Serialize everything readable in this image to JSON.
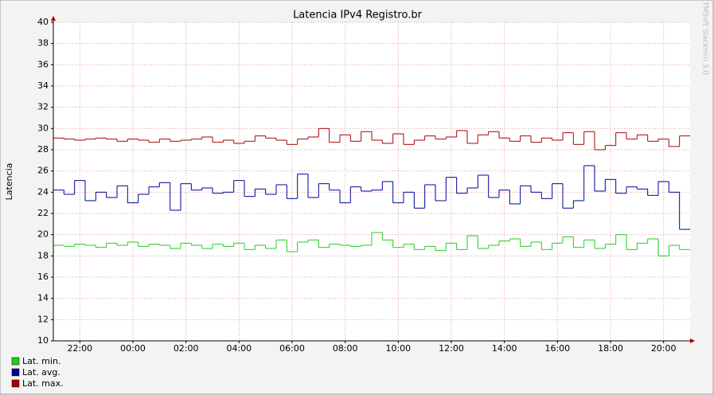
{
  "chart_data": {
    "type": "step-line",
    "title": "Latencia IPv4 Registro.br",
    "y_label": "Latencia",
    "watermark": "TMSoft Slackmin 3.0",
    "x": [
      0,
      0.4,
      0.8,
      1.2,
      1.6,
      2,
      2.4,
      2.8,
      3.2,
      3.6,
      4,
      4.4,
      4.8,
      5.2,
      5.6,
      6,
      6.4,
      6.8,
      7.2,
      7.6,
      8,
      8.4,
      8.8,
      9.2,
      9.6,
      10,
      10.4,
      10.8,
      11.2,
      11.6,
      12,
      12.4,
      12.8,
      13.2,
      13.6,
      14,
      14.4,
      14.8,
      15.2,
      15.6,
      16,
      16.4,
      16.8,
      17.2,
      17.6,
      18,
      18.4,
      18.8,
      19.2,
      19.6,
      20,
      20.4,
      20.8,
      21.2,
      21.6,
      22,
      22.4,
      22.8,
      23.2,
      23.6
    ],
    "xlim": [
      0,
      24
    ],
    "xticks": [
      {
        "value": 1,
        "label": "22:00"
      },
      {
        "value": 3,
        "label": "00:00"
      },
      {
        "value": 5,
        "label": "02:00"
      },
      {
        "value": 7,
        "label": "04:00"
      },
      {
        "value": 9,
        "label": "06:00"
      },
      {
        "value": 11,
        "label": "08:00"
      },
      {
        "value": 13,
        "label": "10:00"
      },
      {
        "value": 15,
        "label": "12:00"
      },
      {
        "value": 17,
        "label": "14:00"
      },
      {
        "value": 19,
        "label": "16:00"
      },
      {
        "value": 21,
        "label": "18:00"
      },
      {
        "value": 23,
        "label": "20:00"
      }
    ],
    "ylim": [
      10,
      40
    ],
    "yticks": [
      10,
      12,
      14,
      16,
      18,
      20,
      22,
      24,
      26,
      28,
      30,
      32,
      34,
      36,
      38,
      40
    ],
    "grid": true,
    "series": [
      {
        "name": "Lat. min.",
        "color": "#22cc22",
        "values": [
          19.0,
          18.9,
          19.1,
          19.0,
          18.8,
          19.2,
          19.0,
          19.3,
          18.9,
          19.1,
          19.0,
          18.7,
          19.2,
          19.0,
          18.7,
          19.1,
          18.9,
          19.2,
          18.6,
          19.0,
          18.7,
          19.5,
          18.4,
          19.3,
          19.5,
          18.8,
          19.1,
          19.0,
          18.9,
          19.0,
          20.2,
          19.5,
          18.8,
          19.1,
          18.6,
          18.9,
          18.5,
          19.2,
          18.6,
          19.9,
          18.7,
          19.0,
          19.4,
          19.6,
          18.9,
          19.3,
          18.6,
          19.2,
          19.8,
          18.8,
          19.5,
          18.7,
          19.1,
          20.0,
          18.6,
          19.2,
          19.6,
          18.0,
          19.0,
          18.6
        ]
      },
      {
        "name": "Lat. avg.",
        "color": "#000099",
        "values": [
          24.2,
          23.8,
          25.1,
          23.2,
          24.0,
          23.5,
          24.6,
          23.0,
          23.8,
          24.5,
          24.9,
          22.3,
          24.8,
          24.2,
          24.4,
          23.9,
          24.0,
          25.1,
          23.6,
          24.3,
          23.8,
          24.7,
          23.4,
          25.7,
          23.5,
          24.8,
          24.2,
          23.0,
          24.5,
          24.1,
          24.2,
          25.0,
          23.0,
          24.0,
          22.5,
          24.7,
          23.2,
          25.4,
          23.9,
          24.4,
          25.6,
          23.5,
          24.2,
          22.9,
          24.6,
          24.0,
          23.4,
          24.8,
          22.5,
          23.2,
          26.5,
          24.1,
          25.2,
          23.9,
          24.5,
          24.3,
          23.7,
          25.0,
          24.0,
          20.5
        ]
      },
      {
        "name": "Lat. max.",
        "color": "#aa0000",
        "values": [
          29.1,
          29.0,
          28.9,
          29.0,
          29.1,
          29.0,
          28.8,
          29.0,
          28.9,
          28.7,
          29.0,
          28.8,
          28.9,
          29.0,
          29.2,
          28.7,
          28.9,
          28.6,
          28.8,
          29.3,
          29.1,
          28.9,
          28.5,
          29.0,
          29.2,
          30.0,
          28.7,
          29.4,
          28.8,
          29.7,
          28.9,
          28.6,
          29.5,
          28.5,
          28.9,
          29.3,
          29.0,
          29.2,
          29.8,
          28.6,
          29.4,
          29.7,
          29.1,
          28.8,
          29.3,
          28.7,
          29.1,
          28.9,
          29.6,
          28.5,
          29.7,
          28.0,
          28.4,
          29.6,
          29.0,
          29.4,
          28.8,
          29.0,
          28.3,
          29.3
        ]
      }
    ]
  }
}
